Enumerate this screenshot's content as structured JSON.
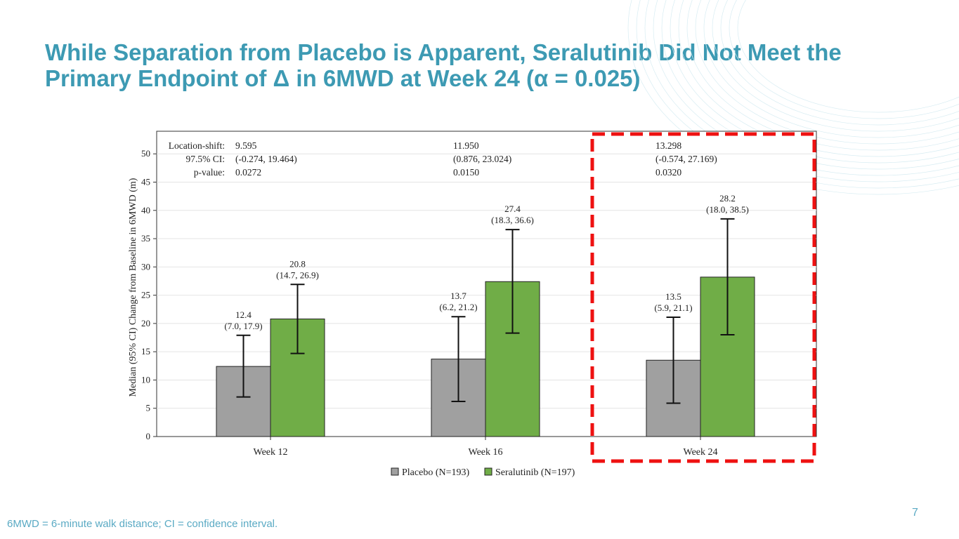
{
  "slide": {
    "title": "While Separation from Placebo is Apparent, Seralutinib Did Not Meet the Primary Endpoint of Δ in 6MWD at Week 24 (α = 0.025)",
    "footnote": "6MWD = 6-minute walk distance; CI = confidence interval.",
    "page_number": "7"
  },
  "chart_data": {
    "type": "bar",
    "ylabel": "Median (95% CI) Change from Baseline in 6MWD (m)",
    "xlabel": "",
    "ylim": [
      0,
      54
    ],
    "yticks": [
      0,
      5,
      10,
      15,
      20,
      25,
      30,
      35,
      40,
      45,
      50
    ],
    "grid": true,
    "legend_position": "bottom",
    "categories": [
      "Week 12",
      "Week 16",
      "Week 24"
    ],
    "series": [
      {
        "name": "Placebo (N=193)",
        "color": "#a0a0a0",
        "values": [
          12.4,
          13.7,
          13.5
        ],
        "ci_low": [
          7.0,
          6.2,
          5.9
        ],
        "ci_high": [
          17.9,
          21.2,
          21.1
        ],
        "labels": [
          "12.4",
          "13.7",
          "13.5"
        ],
        "ci_labels": [
          "(7.0, 17.9)",
          "(6.2, 21.2)",
          "(5.9, 21.1)"
        ]
      },
      {
        "name": "Seralutinib (N=197)",
        "color": "#70ad47",
        "values": [
          20.8,
          27.4,
          28.2
        ],
        "ci_low": [
          14.7,
          18.3,
          18.0
        ],
        "ci_high": [
          26.9,
          36.6,
          38.5
        ],
        "labels": [
          "20.8",
          "27.4",
          "28.2"
        ],
        "ci_labels": [
          "(14.7, 26.9)",
          "(18.3, 36.6)",
          "(18.0, 38.5)"
        ]
      }
    ],
    "stats_labels": [
      "Location-shift:",
      "97.5% CI:",
      "p-value:"
    ],
    "stats": [
      [
        "9.595",
        "(-0.274, 19.464)",
        "0.0272"
      ],
      [
        "11.950",
        "(0.876, 23.024)",
        "0.0150"
      ],
      [
        "13.298",
        "(-0.574, 27.169)",
        "0.0320"
      ]
    ],
    "highlight_category": "Week 24",
    "highlight_color": "#ee1111"
  }
}
